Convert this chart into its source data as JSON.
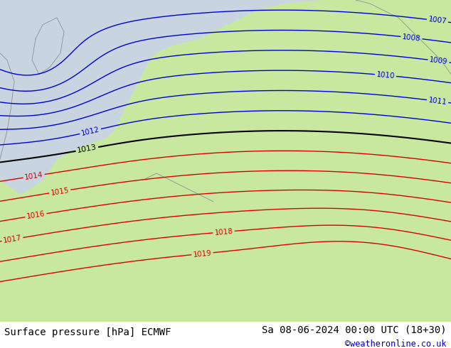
{
  "title_left": "Surface pressure [hPa] ECMWF",
  "title_right": "Sa 08-06-2024 00:00 UTC (18+30)",
  "watermark": "©weatheronline.co.uk",
  "land_color": "#c8e8a0",
  "sea_color": "#c8d4e0",
  "border_color": "#909090",
  "contour_blue_color": "#0000dd",
  "contour_black_color": "#000000",
  "contour_red_color": "#dd0000",
  "bottom_bar_color": "#e8e8e8",
  "font_size_bottom": 10,
  "figsize": [
    6.34,
    4.9
  ],
  "dpi": 100
}
